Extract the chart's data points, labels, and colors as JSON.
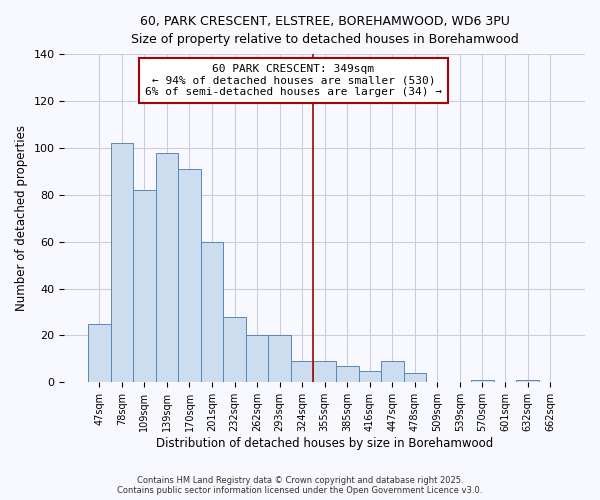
{
  "title": "60, PARK CRESCENT, ELSTREE, BOREHAMWOOD, WD6 3PU",
  "subtitle": "Size of property relative to detached houses in Borehamwood",
  "xlabel": "Distribution of detached houses by size in Borehamwood",
  "ylabel": "Number of detached properties",
  "bar_color": "#ccddf0",
  "bar_edge_color": "#5588bb",
  "background_color": "#f8f8ff",
  "grid_color": "#ccccdd",
  "categories": [
    "47sqm",
    "78sqm",
    "109sqm",
    "139sqm",
    "170sqm",
    "201sqm",
    "232sqm",
    "262sqm",
    "293sqm",
    "324sqm",
    "355sqm",
    "385sqm",
    "416sqm",
    "447sqm",
    "478sqm",
    "509sqm",
    "539sqm",
    "570sqm",
    "601sqm",
    "632sqm",
    "662sqm"
  ],
  "values": [
    25,
    102,
    82,
    98,
    91,
    60,
    28,
    20,
    20,
    9,
    9,
    7,
    5,
    9,
    4,
    0,
    0,
    1,
    0,
    1,
    0
  ],
  "ylim": [
    0,
    140
  ],
  "yticks": [
    0,
    20,
    40,
    60,
    80,
    100,
    120,
    140
  ],
  "vline_x": 9.5,
  "vline_color": "#aa0000",
  "annotation_title": "60 PARK CRESCENT: 349sqm",
  "annotation_line1": "← 94% of detached houses are smaller (530)",
  "annotation_line2": "6% of semi-detached houses are larger (34) →",
  "footer1": "Contains HM Land Registry data © Crown copyright and database right 2025.",
  "footer2": "Contains public sector information licensed under the Open Government Licence v3.0."
}
